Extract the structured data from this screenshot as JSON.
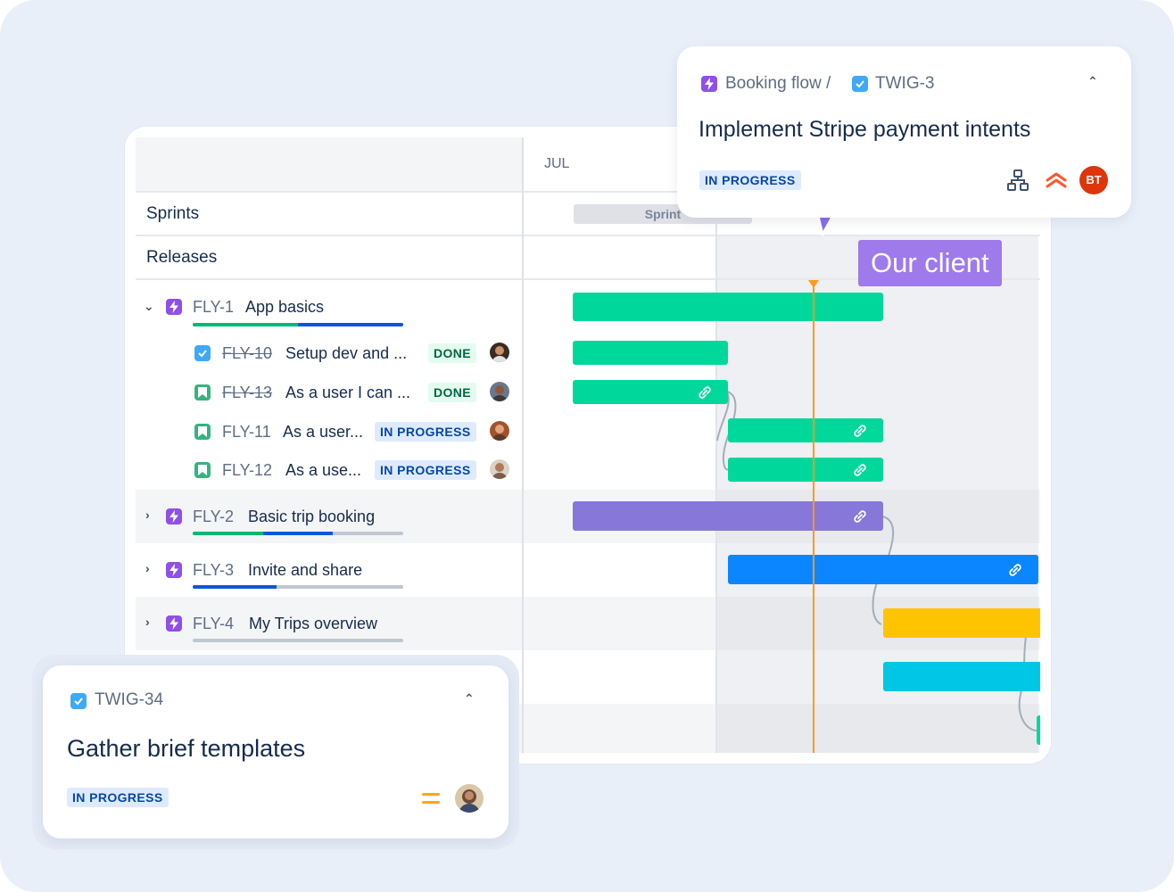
{
  "timeline": {
    "month_label": "JUL",
    "rows": {
      "sprints": "Sprints",
      "releases": "Releases"
    },
    "sprint_pill": "Sprint",
    "epics": [
      {
        "key": "FLY-1",
        "title": "App basics",
        "expanded": true,
        "progress": {
          "done": 0.42,
          "in_progress": 0.5
        }
      },
      {
        "key": "FLY-2",
        "title": "Basic trip booking",
        "expanded": false,
        "progress": {
          "done": 0.33,
          "in_progress": 0.33
        }
      },
      {
        "key": "FLY-3",
        "title": "Invite and share",
        "expanded": false,
        "progress": {
          "done": 0,
          "in_progress": 0.4
        }
      },
      {
        "key": "FLY-4",
        "title": "My Trips overview",
        "expanded": false,
        "progress": {
          "done": 0,
          "in_progress": 0
        }
      }
    ],
    "children": [
      {
        "key": "FLY-10",
        "title": "Setup dev and ...",
        "status": "DONE",
        "type": "task",
        "struck": true
      },
      {
        "key": "FLY-13",
        "title": "As a user I can ...",
        "status": "DONE",
        "type": "story",
        "struck": true
      },
      {
        "key": "FLY-11",
        "title": "As a user...",
        "status": "IN PROGRESS",
        "type": "story",
        "struck": false
      },
      {
        "key": "FLY-12",
        "title": "As a use...",
        "status": "IN PROGRESS",
        "type": "story",
        "struck": false
      }
    ]
  },
  "colors": {
    "green": "#00D89B",
    "purple": "#8777D9",
    "blue": "#0C86FF",
    "yellow": "#FFC400",
    "cyan": "#00C7E6",
    "today_line": "#FF991F",
    "client_tag": "#9F7AEA"
  },
  "popover_top": {
    "parent": "Booking flow /",
    "key": "TWIG-3",
    "title": "Implement Stripe payment intents",
    "status": "IN PROGRESS",
    "avatar_initials": "BT",
    "icons": [
      "hierarchy-icon",
      "priority-highest-icon"
    ]
  },
  "popover_bottom": {
    "key": "TWIG-34",
    "title": "Gather brief templates",
    "status": "IN PROGRESS",
    "icons": [
      "priority-medium-icon"
    ]
  },
  "client_label": "Our client"
}
